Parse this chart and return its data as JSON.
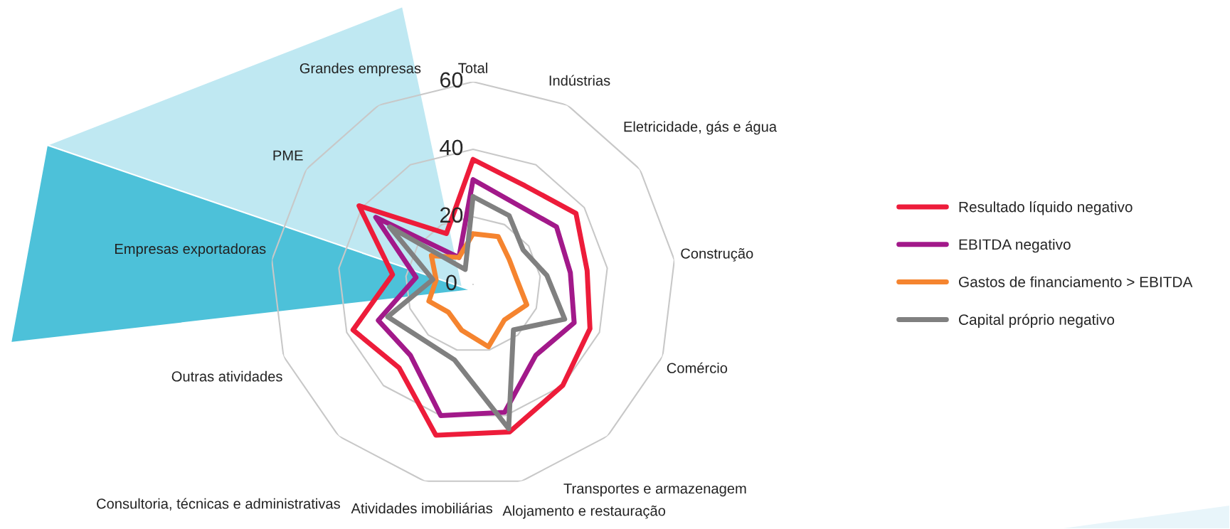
{
  "chart_data": {
    "type": "radar",
    "categories": [
      "Total",
      "Indústrias",
      "Eletricidade, gás e água",
      "Construção",
      "Comércio",
      "Transportes e armazenagem",
      "Alojamento e restauração",
      "Atividades imobiliárias",
      "Consultoria, técnicas e administrativas",
      "Outras atividades",
      "Empresas exportadoras",
      "PME",
      "Grandes empresas"
    ],
    "series": [
      {
        "name": "Resultado líquido negativo",
        "color": "#ed1c3a",
        "values": [
          37,
          33,
          37,
          34,
          37,
          40,
          45,
          46,
          33,
          38,
          24,
          41,
          17
        ]
      },
      {
        "name": "EBITDA negativo",
        "color": "#a2198a",
        "values": [
          31,
          27,
          30,
          29,
          32,
          28,
          39,
          40,
          28,
          30,
          17,
          35,
          9
        ]
      },
      {
        "name": "Gastos de financiamento > EBITDA",
        "color": "#f5842f",
        "values": [
          15,
          16,
          13,
          13,
          17,
          14,
          19,
          14,
          11,
          14,
          11,
          15,
          9
        ]
      },
      {
        "name": "Capital próprio negativo",
        "color": "#808080",
        "values": [
          26,
          23,
          18,
          22,
          29,
          18,
          44,
          23,
          22,
          27,
          12,
          30,
          5
        ]
      }
    ],
    "ylim": [
      0,
      60
    ],
    "yticks": [
      0,
      20,
      40,
      60
    ],
    "grid": true,
    "legend": "right",
    "marker": "none",
    "line_style": "solid"
  }
}
